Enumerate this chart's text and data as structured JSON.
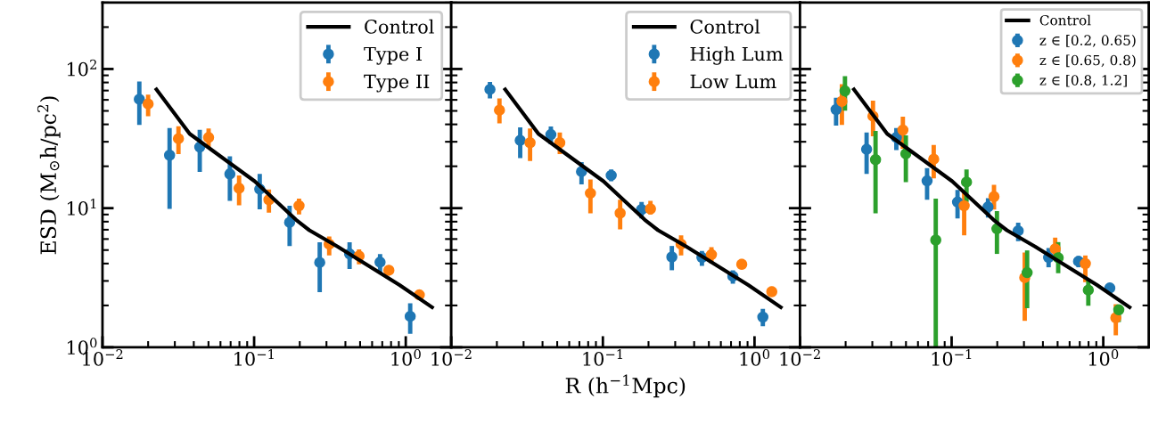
{
  "chart_data": [
    {
      "type": "scatter",
      "ylabel": "ESD (M$_{⊙}$h/pc$^{2}$)",
      "log": "xy",
      "legend": "top right",
      "xlim": [
        0.01,
        1.995
      ],
      "ylim": [
        1,
        300
      ],
      "xticks": [
        {
          "value": 0.01,
          "label": "10$^{−2}$"
        },
        {
          "value": 0.1,
          "label": "10$^{−1}$"
        },
        {
          "value": 1,
          "label": "10$^{0}$"
        }
      ],
      "yticks": [
        {
          "value": 1,
          "label": "10$^{0}$"
        },
        {
          "value": 10,
          "label": "10$^{1}$"
        },
        {
          "value": 100,
          "label": "10$^{2}$"
        }
      ],
      "series": [
        {
          "name": "Control",
          "type": "line",
          "marker": "none",
          "color": "#000000",
          "x": [
            0.0227,
            0.0376,
            0.1009,
            0.1891,
            0.2314,
            0.3545,
            0.91,
            1.491
          ],
          "values": [
            71.3,
            34.2,
            15.6,
            8.24,
            6.94,
            5.3,
            2.8,
            1.94
          ]
        },
        {
          "name": "Type I",
          "marker": "circle",
          "color": "#1f77b4",
          "x": [
            0.0175,
            0.0277,
            0.0438,
            0.0692,
            0.1089,
            0.1714,
            0.2708,
            0.4262,
            0.677,
            1.07
          ],
          "values": [
            60.6,
            24.0,
            27.5,
            17.6,
            13.7,
            7.9,
            4.07,
            4.69,
            4.09,
            1.67
          ],
          "errors": [
            [
              39.6,
              81.4
            ],
            [
              9.9,
              37.7
            ],
            [
              18.2,
              36.6
            ],
            [
              11.3,
              23.6
            ],
            [
              9.8,
              17.6
            ],
            [
              5.35,
              10.4
            ],
            [
              2.49,
              5.68
            ],
            [
              3.65,
              5.68
            ],
            [
              3.41,
              4.67
            ],
            [
              1.25,
              2.07
            ]
          ]
        },
        {
          "name": "Type II",
          "marker": "circle",
          "color": "#ff7f0e",
          "x": [
            0.02,
            0.0317,
            0.0501,
            0.0796,
            0.1252,
            0.1978,
            0.3127,
            0.492,
            0.774,
            1.229
          ],
          "values": [
            56.1,
            31.6,
            32.2,
            13.9,
            11.5,
            10.4,
            5.51,
            4.53,
            3.58,
            2.38
          ],
          "errors": [
            [
              45.8,
              65.3
            ],
            [
              24.5,
              38.8
            ],
            [
              27.1,
              37.3
            ],
            [
              10.5,
              17.2
            ],
            [
              9.27,
              13.6
            ],
            [
              9.0,
              11.7
            ],
            [
              4.57,
              6.26
            ],
            [
              3.95,
              5.05
            ],
            [
              3.32,
              3.85
            ],
            [
              2.21,
              2.54
            ]
          ]
        }
      ]
    },
    {
      "type": "scatter",
      "xlabel": "R (h$^{−1}$Mpc)",
      "log": "xy",
      "legend": "top right",
      "tick_labels": "x",
      "xlim": [
        0.01,
        1.995
      ],
      "ylim": [
        1,
        300
      ],
      "xticks": [
        {
          "value": 0.01,
          "label": "10$^{−2}$"
        },
        {
          "value": 0.1,
          "label": "10$^{−1}$"
        },
        {
          "value": 1,
          "label": "10$^{0}$"
        }
      ],
      "yticks": [
        {
          "value": 1,
          "label": null
        },
        {
          "value": 10,
          "label": null
        },
        {
          "value": 100,
          "label": null
        }
      ],
      "series": [
        {
          "name": "Control",
          "type": "line",
          "marker": "none",
          "color": "#000000",
          "x": [
            0.0227,
            0.0376,
            0.1009,
            0.1891,
            0.2314,
            0.3545,
            0.91,
            1.491
          ],
          "values": [
            71.3,
            34.2,
            15.6,
            8.24,
            6.94,
            5.3,
            2.8,
            1.94
          ]
        },
        {
          "name": "High Lum",
          "marker": "circle",
          "color": "#1f77b4",
          "x": [
            0.018,
            0.0285,
            0.0454,
            0.0723,
            0.1135,
            0.18,
            0.285,
            0.45,
            0.72,
            1.135
          ],
          "values": [
            71.3,
            30.7,
            33.8,
            18.3,
            17.2,
            9.78,
            4.46,
            4.42,
            3.24,
            1.65
          ],
          "errors": [
            [
              61.5,
              80.6
            ],
            [
              22.9,
              38.0
            ],
            [
              28.8,
              38.6
            ],
            [
              14.8,
              21.4
            ],
            [
              15.6,
              18.97
            ],
            [
              8.44,
              11.06
            ],
            [
              3.58,
              5.35
            ],
            [
              3.85,
              4.92
            ],
            [
              2.87,
              3.58
            ],
            [
              1.42,
              1.89
            ]
          ]
        },
        {
          "name": "Low Lum",
          "marker": "circle",
          "color": "#ff7f0e",
          "x": [
            0.0208,
            0.0331,
            0.052,
            0.0828,
            0.13,
            0.206,
            0.328,
            0.52,
            0.824,
            1.3
          ],
          "values": [
            50.6,
            29.5,
            29.5,
            12.8,
            9.22,
            9.88,
            5.51,
            4.64,
            3.95,
            2.51
          ],
          "errors": [
            [
              40.6,
              61.5
            ],
            [
              21.8,
              37.3
            ],
            [
              24.5,
              35.0
            ],
            [
              9.18,
              16.1
            ],
            [
              7.04,
              11.5
            ],
            [
              9.0,
              11.3
            ],
            [
              4.57,
              6.38
            ],
            [
              4.01,
              5.25
            ],
            [
              3.67,
              4.31
            ],
            [
              2.36,
              2.73
            ]
          ]
        }
      ]
    },
    {
      "type": "scatter",
      "log": "xy",
      "legend": "top right",
      "tick_labels": "x",
      "xlim": [
        0.01,
        1.995
      ],
      "ylim": [
        1,
        300
      ],
      "xticks": [
        {
          "value": 0.01,
          "label": "10$^{−2}$"
        },
        {
          "value": 0.1,
          "label": "10$^{−1}$"
        },
        {
          "value": 1,
          "label": "10$^{0}$"
        }
      ],
      "yticks": [
        {
          "value": 1,
          "label": null
        },
        {
          "value": 10,
          "label": null
        },
        {
          "value": 100,
          "label": null
        }
      ],
      "series": [
        {
          "name": "Control",
          "type": "line",
          "marker": "none",
          "color": "#000000",
          "x": [
            0.0227,
            0.0376,
            0.1009,
            0.1891,
            0.2314,
            0.3545,
            0.91,
            1.491
          ],
          "values": [
            71.3,
            34.2,
            15.6,
            8.24,
            6.94,
            5.3,
            2.8,
            1.94
          ]
        },
        {
          "name": "z ∈ [0.2, 0.65)",
          "marker": "circle",
          "color": "#1f77b4",
          "x": [
            0.0173,
            0.0275,
            0.0432,
            0.0689,
            0.1094,
            0.1738,
            0.2748,
            0.436,
            0.687,
            1.105
          ],
          "values": [
            51.1,
            26.5,
            32.2,
            15.7,
            11.06,
            10.2,
            6.87,
            4.42,
            4.15,
            2.67
          ],
          "errors": [
            [
              39.2,
              62.1
            ],
            [
              17.6,
              35.0
            ],
            [
              26.1,
              37.7
            ],
            [
              11.5,
              19.4
            ],
            [
              8.44,
              13.5
            ],
            [
              8.57,
              11.8
            ],
            [
              5.79,
              7.85
            ],
            [
              3.76,
              5.17
            ],
            [
              3.76,
              4.53
            ],
            [
              2.44,
              2.87
            ]
          ]
        },
        {
          "name": "z ∈ [0.65, 0.8)",
          "marker": "circle",
          "color": "#ff7f0e",
          "x": [
            0.0189,
            0.0303,
            0.0477,
            0.0762,
            0.121,
            0.1903,
            0.3035,
            0.482,
            0.762,
            1.21
          ],
          "values": [
            58.6,
            45.8,
            36.4,
            22.5,
            10.4,
            12.1,
            3.17,
            5.1,
            3.99,
            1.63
          ],
          "errors": [
            [
              39.6,
              77.9
            ],
            [
              32.9,
              59.2
            ],
            [
              26.7,
              45.4
            ],
            [
              16.4,
              28.5
            ],
            [
              6.38,
              13.5
            ],
            [
              9.78,
              14.7
            ],
            [
              1.55,
              4.8
            ],
            [
              4.31,
              6.14
            ],
            [
              2.94,
              4.57
            ],
            [
              1.22,
              2.04
            ]
          ]
        },
        {
          "name": "z ∈ [0.8, 1.2]",
          "marker": "circle",
          "color": "#2ca02c",
          "x": [
            0.0198,
            0.0315,
            0.0499,
            0.0786,
            0.1254,
            0.199,
            0.3148,
            0.5045,
            0.797,
            1.266
          ],
          "values": [
            69.6,
            22.3,
            24.6,
            5.9,
            15.4,
            7.11,
            3.44,
            4.4,
            2.58,
            1.86
          ],
          "errors": [
            [
              50.1,
              88.9
            ],
            [
              9.18,
              35.9
            ],
            [
              15.4,
              33.3
            ],
            [
              1,
              11.7
            ],
            [
              11.06,
              19.0
            ],
            [
              4.69,
              9.54
            ],
            [
              1.91,
              4.97
            ],
            [
              3.41,
              5.7
            ],
            [
              1.99,
              3.09
            ],
            [
              1.52,
              1.99
            ]
          ]
        }
      ]
    }
  ]
}
